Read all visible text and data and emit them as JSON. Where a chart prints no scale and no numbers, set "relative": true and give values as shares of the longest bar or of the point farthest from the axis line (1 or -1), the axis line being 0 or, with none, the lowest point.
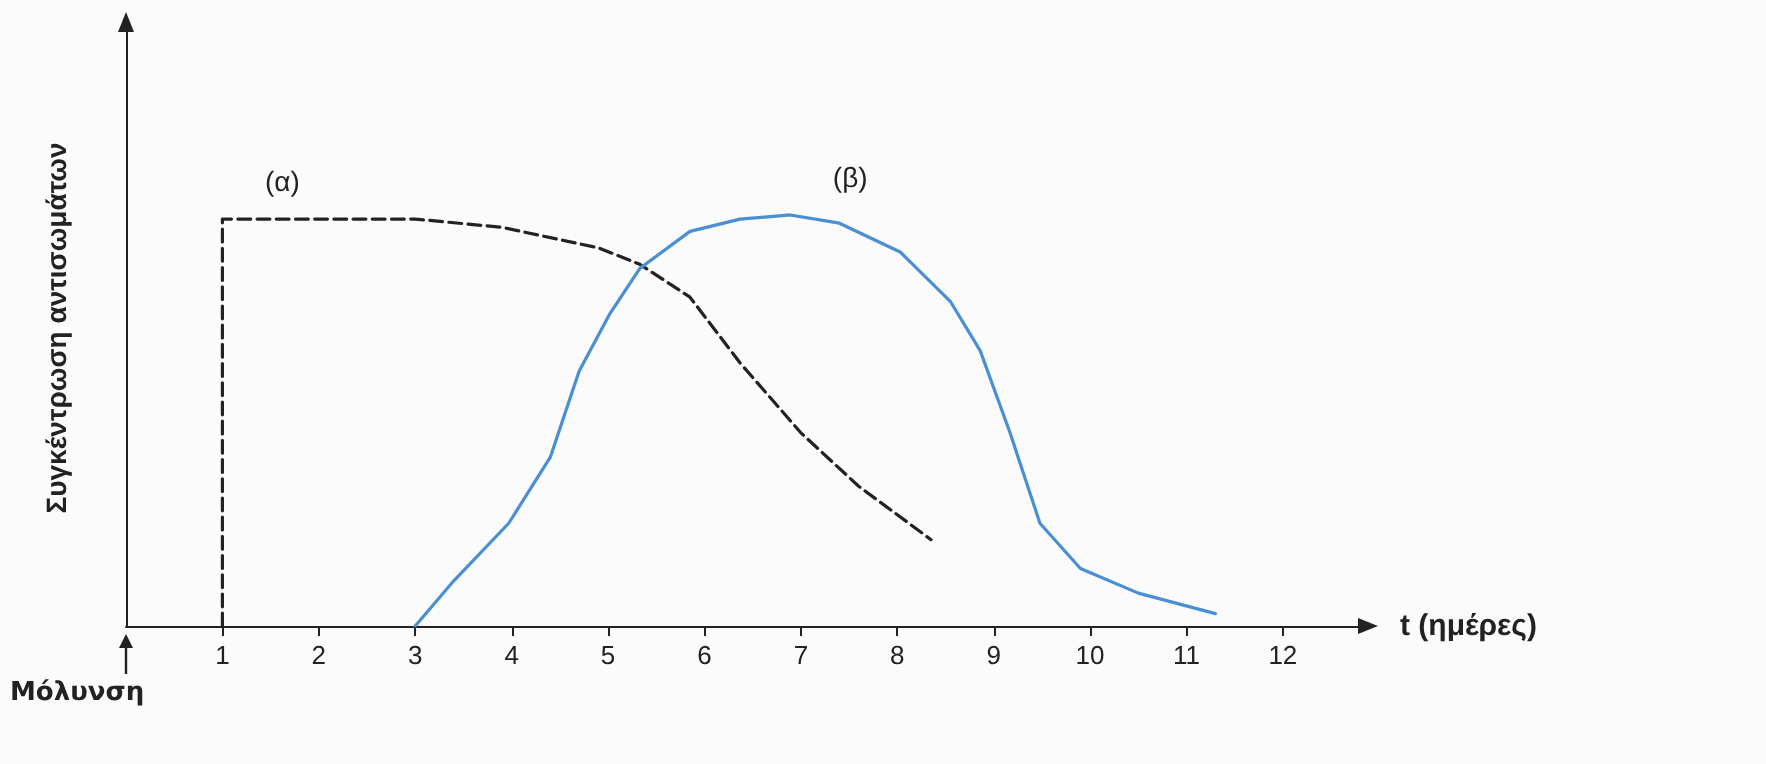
{
  "chart_data": {
    "type": "line",
    "relative": true,
    "xlabel": "t (ημέρες)",
    "ylabel": "Συγκέντρωση αντισωμάτων",
    "annotations": [
      "Μόλυνση"
    ],
    "xlim": [
      0,
      12.8
    ],
    "xticks": [
      1,
      2,
      3,
      4,
      5,
      6,
      7,
      8,
      9,
      10,
      11,
      12
    ],
    "grid": false,
    "legend": false,
    "marker": "none",
    "series": [
      {
        "name": "(α)",
        "color": "#222222",
        "line_style": "dashed",
        "x": [
          1,
          1,
          2,
          3,
          3.9,
          4.9,
          5.33,
          5.85,
          6.37,
          7.0,
          7.6,
          8.35
        ],
        "values": [
          0,
          0.99,
          0.99,
          0.99,
          0.97,
          0.92,
          0.88,
          0.8,
          0.64,
          0.47,
          0.34,
          0.21
        ]
      },
      {
        "name": "(β)",
        "color": "#4a8fd4",
        "line_style": "solid",
        "x": [
          3,
          3.4,
          3.97,
          4.4,
          4.7,
          5.02,
          5.33,
          5.85,
          6.37,
          6.89,
          7.4,
          8.03,
          8.55,
          8.86,
          9.17,
          9.48,
          9.9,
          10.5,
          11.3
        ],
        "values": [
          0,
          0.11,
          0.25,
          0.41,
          0.62,
          0.76,
          0.87,
          0.96,
          0.99,
          1,
          0.98,
          0.91,
          0.79,
          0.67,
          0.47,
          0.25,
          0.14,
          0.08,
          0.03
        ]
      }
    ]
  }
}
